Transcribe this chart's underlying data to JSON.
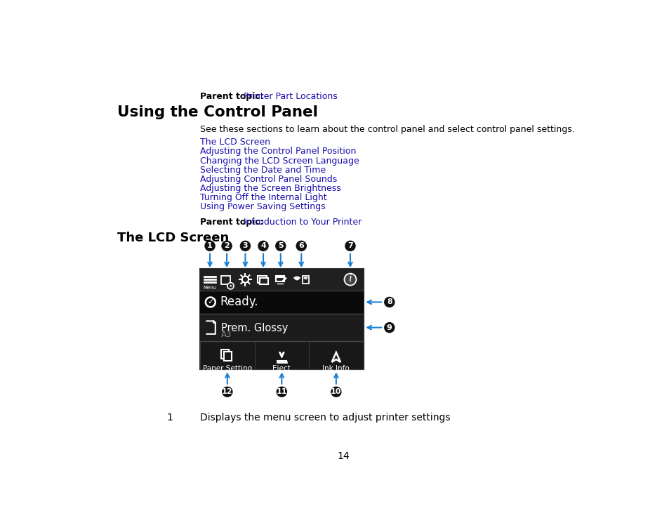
{
  "bg": "#ffffff",
  "link_color": "#1a0dab",
  "black": "#000000",
  "page_num": "14",
  "parent1_bold": "Parent topic:",
  "parent1_link": "Printer Part Locations",
  "main_title": "Using the Control Panel",
  "intro": "See these sections to learn about the control panel and select control panel settings.",
  "links": [
    "The LCD Screen",
    "Adjusting the Control Panel Position",
    "Changing the LCD Screen Language",
    "Selecting the Date and Time",
    "Adjusting Control Panel Sounds",
    "Adjusting the Screen Brightness",
    "Turning Off the Internal Light",
    "Using Power Saving Settings"
  ],
  "parent2_bold": "Parent topic:",
  "parent2_link": "Introduction to Your Printer",
  "section_title": "The LCD Screen",
  "desc1": "Displays the menu screen to adjust printer settings",
  "screen_bg": "#141414",
  "toolbar_bg": "#222222",
  "paper_row_bg": "#1e1e1e",
  "btn_bg": "#181818",
  "sep_color": "#444444",
  "white": "#ffffff",
  "gray": "#888888",
  "arrow_color": "#1a7fd4",
  "callout_bg": "#111111"
}
